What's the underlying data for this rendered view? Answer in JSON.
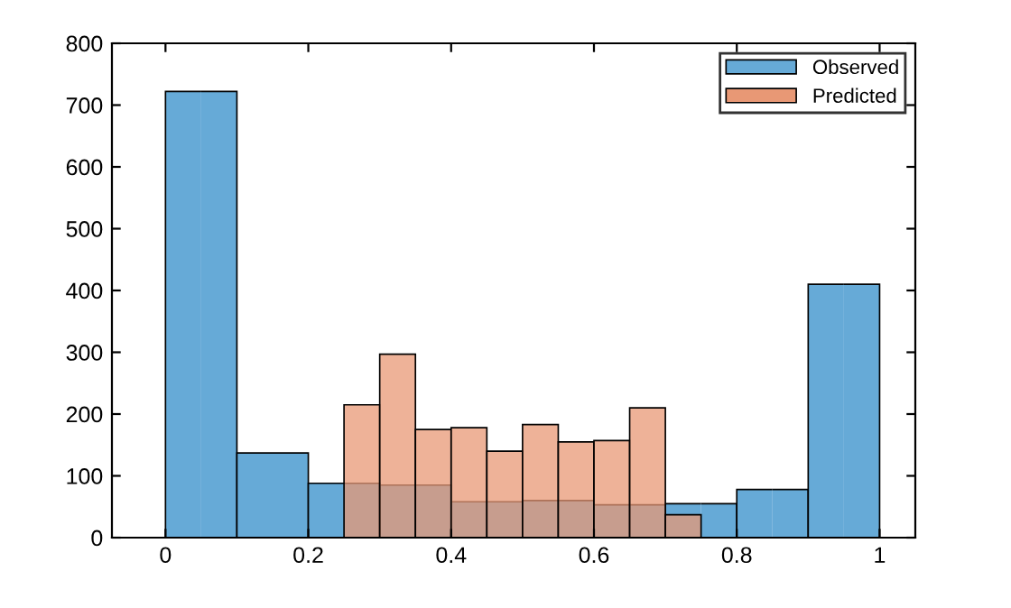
{
  "chart_data": {
    "type": "histogram",
    "bins": [
      0,
      0.05,
      0.1,
      0.15,
      0.2,
      0.25,
      0.3,
      0.35,
      0.4,
      0.45,
      0.5,
      0.55,
      0.6,
      0.65,
      0.7,
      0.75,
      0.8,
      0.85,
      0.9,
      0.95,
      1.0
    ],
    "series": [
      {
        "name": "Observed",
        "color": "#66aad7",
        "values": [
          722,
          722,
          137,
          137,
          88,
          88,
          85,
          85,
          58,
          58,
          60,
          60,
          53,
          53,
          55,
          55,
          78,
          78,
          410,
          410
        ]
      },
      {
        "name": "Predicted",
        "color": "#e89875",
        "values": [
          null,
          null,
          null,
          null,
          null,
          215,
          297,
          175,
          178,
          140,
          183,
          155,
          157,
          210,
          37,
          null,
          null,
          null,
          null,
          null
        ]
      }
    ],
    "xlim": [
      -0.075,
      1.05
    ],
    "xticks": [
      0,
      0.2,
      0.4,
      0.6,
      0.8,
      1
    ],
    "ylim": [
      0,
      800
    ],
    "yticks": [
      0,
      100,
      200,
      300,
      400,
      500,
      600,
      700,
      800
    ],
    "legend": "top right",
    "grid": false
  }
}
